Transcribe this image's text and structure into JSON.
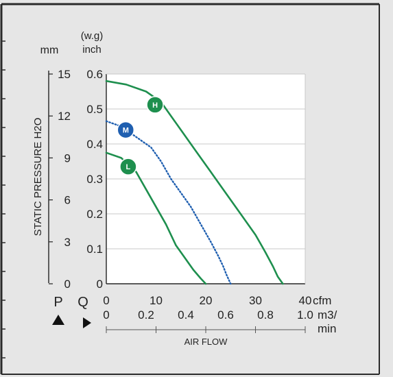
{
  "colors": {
    "frame_bg": "#e6e6e6",
    "frame_border": "#2a2a2a",
    "plot_bg": "#ffffff",
    "grid": "#c8c8c8",
    "curve_green": "#1e8f4e",
    "curve_blue": "#1f5fb0",
    "text": "#222222"
  },
  "chart_data": {
    "type": "line",
    "ylabel": "STATIC PRESSURE H2O",
    "xlabel": "AIR FLOW",
    "y_axis_mm": {
      "unit": "mm",
      "symbol": "P",
      "ticks": [
        "15",
        "12",
        "9",
        "6",
        "3",
        "0"
      ]
    },
    "y_axis_inch": {
      "unit_line1": "(w.g)",
      "unit_line2": "inch",
      "ticks": [
        "0.6",
        "0.5",
        "0.4",
        "0.3",
        "0.2",
        "0.1",
        "0"
      ],
      "range": [
        0,
        0.6
      ]
    },
    "x_axis_cfm": {
      "unit": "cfm",
      "symbol": "Q",
      "ticks": [
        "0",
        "10",
        "20",
        "30",
        "40"
      ],
      "range": [
        0,
        40
      ]
    },
    "x_axis_m3": {
      "unit_line1": "m3/",
      "unit_line2": "min",
      "ticks": [
        "0",
        "0.2",
        "0.4",
        "0.6",
        "0.8",
        "1.0"
      ],
      "range": [
        0,
        1.0
      ]
    },
    "grid": true,
    "series": [
      {
        "name": "H",
        "style": "solid",
        "color": "#1e8f4e",
        "marker_at": [
          9.8,
          0.512
        ],
        "points": [
          [
            0,
            0.58
          ],
          [
            4,
            0.57
          ],
          [
            8,
            0.55
          ],
          [
            11,
            0.52
          ],
          [
            13,
            0.48
          ],
          [
            15,
            0.44
          ],
          [
            18,
            0.38
          ],
          [
            21,
            0.32
          ],
          [
            24,
            0.26
          ],
          [
            27,
            0.2
          ],
          [
            30,
            0.14
          ],
          [
            32,
            0.09
          ],
          [
            33.5,
            0.05
          ],
          [
            34.5,
            0.02
          ],
          [
            35.5,
            0.0
          ]
        ]
      },
      {
        "name": "M",
        "style": "dotted",
        "color": "#1f5fb0",
        "marker_at": [
          3.9,
          0.44
        ],
        "points": [
          [
            0,
            0.465
          ],
          [
            3,
            0.45
          ],
          [
            6,
            0.42
          ],
          [
            9,
            0.39
          ],
          [
            11,
            0.35
          ],
          [
            13,
            0.3
          ],
          [
            15,
            0.26
          ],
          [
            17,
            0.22
          ],
          [
            19,
            0.17
          ],
          [
            21,
            0.12
          ],
          [
            22.5,
            0.08
          ],
          [
            23.5,
            0.05
          ],
          [
            24.2,
            0.025
          ],
          [
            25,
            0.0
          ]
        ]
      },
      {
        "name": "L",
        "style": "solid",
        "color": "#1e8f4e",
        "marker_at": [
          4.4,
          0.335
        ],
        "points": [
          [
            0,
            0.375
          ],
          [
            3,
            0.36
          ],
          [
            6,
            0.32
          ],
          [
            8,
            0.27
          ],
          [
            10,
            0.22
          ],
          [
            12,
            0.17
          ],
          [
            14,
            0.11
          ],
          [
            16,
            0.07
          ],
          [
            17.5,
            0.04
          ],
          [
            19,
            0.015
          ],
          [
            20,
            0.0
          ]
        ]
      }
    ]
  }
}
